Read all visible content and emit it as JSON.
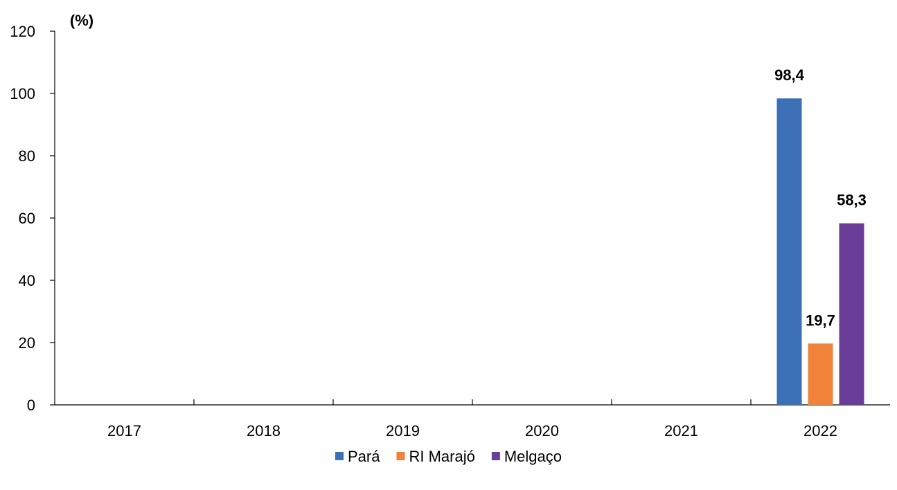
{
  "chart_data": {
    "type": "bar",
    "unit_label": "(%)",
    "categories": [
      "2017",
      "2018",
      "2019",
      "2020",
      "2021",
      "2022"
    ],
    "series": [
      {
        "name": "Pará",
        "color": "#3c6fb6",
        "values": [
          null,
          null,
          null,
          null,
          null,
          98.4
        ],
        "labels": [
          "",
          "",
          "",
          "",
          "",
          "98,4"
        ]
      },
      {
        "name": "RI Marajó",
        "color": "#f0823a",
        "values": [
          null,
          null,
          null,
          null,
          null,
          19.7
        ],
        "labels": [
          "",
          "",
          "",
          "",
          "",
          "19,7"
        ]
      },
      {
        "name": "Melgaço",
        "color": "#6a3d99",
        "values": [
          null,
          null,
          null,
          null,
          null,
          58.3
        ],
        "labels": [
          "",
          "",
          "",
          "",
          "",
          "58,3"
        ]
      }
    ],
    "yticks": [
      "0",
      "20",
      "40",
      "60",
      "80",
      "100",
      "120"
    ],
    "ylim": [
      0,
      120
    ],
    "grid": false,
    "legend_position": "bottom"
  }
}
